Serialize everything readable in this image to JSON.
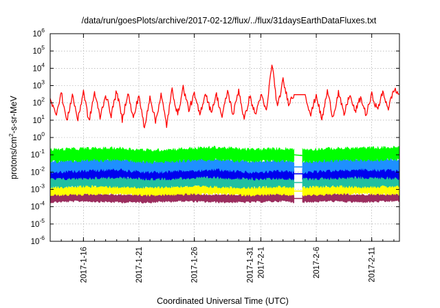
{
  "chart_data": {
    "type": "line",
    "title": "/data/run/goesPlots/archive/2017-02-12/flux/../flux/31daysEarthDataFluxes.txt",
    "xlabel": "Coordinated Universal Time (UTC)",
    "ylabel": "protons/cm2-s-sr-MeV",
    "ylabel_parts": {
      "base": "protons/cm",
      "sup": "2",
      "rest": "-s-sr-MeV"
    },
    "yscale": "log",
    "xlim": [
      "2017-01-13",
      "2017-02-13T12:00"
    ],
    "ylim": [
      1e-06,
      1000000.0
    ],
    "grid": true,
    "legend": "none",
    "x_ticks": [
      {
        "x": "2017-01-16",
        "label": "2017-1-16"
      },
      {
        "x": "2017-01-21",
        "label": "2017-1-21"
      },
      {
        "x": "2017-01-26",
        "label": "2017-1-26"
      },
      {
        "x": "2017-01-31",
        "label": "2017-1-31"
      },
      {
        "x": "2017-02-01",
        "label": "2017-2-1"
      },
      {
        "x": "2017-02-06",
        "label": "2017-2-6"
      },
      {
        "x": "2017-02-11",
        "label": "2017-2-11"
      }
    ],
    "y_ticks": [
      {
        "exp": "-6",
        "value": 1e-06
      },
      {
        "exp": "-5",
        "value": 1e-05
      },
      {
        "exp": "-4",
        "value": 0.0001
      },
      {
        "exp": "-3",
        "value": 0.001
      },
      {
        "exp": "-2",
        "value": 0.01
      },
      {
        "exp": "-1",
        "value": 0.1
      },
      {
        "exp": "0",
        "value": 1
      },
      {
        "exp": "1",
        "value": 10
      },
      {
        "exp": "2",
        "value": 100
      },
      {
        "exp": "3",
        "value": 1000
      },
      {
        "exp": "4",
        "value": 10000
      },
      {
        "exp": "5",
        "value": 100000
      },
      {
        "exp": "6",
        "value": 1000000
      }
    ],
    "y_tick_base": "10",
    "data_gap": [
      "2017-02-04",
      "2017-02-04T18:00"
    ],
    "series": [
      {
        "color": "#ff0000",
        "x": [
          "2017-01-13",
          "2017-01-13T12:00",
          "2017-01-14",
          "2017-01-14T12:00",
          "2017-01-15",
          "2017-01-15T12:00",
          "2017-01-16",
          "2017-01-16T12:00",
          "2017-01-17",
          "2017-01-17T12:00",
          "2017-01-18",
          "2017-01-18T12:00",
          "2017-01-19",
          "2017-01-19T12:00",
          "2017-01-20",
          "2017-01-20T12:00",
          "2017-01-21",
          "2017-01-21T12:00",
          "2017-01-22",
          "2017-01-22T12:00",
          "2017-01-23",
          "2017-01-23T12:00",
          "2017-01-24",
          "2017-01-24T12:00",
          "2017-01-25",
          "2017-01-25T12:00",
          "2017-01-26",
          "2017-01-26T12:00",
          "2017-01-27",
          "2017-01-27T12:00",
          "2017-01-28",
          "2017-01-28T12:00",
          "2017-01-29",
          "2017-01-29T12:00",
          "2017-01-30",
          "2017-01-30T12:00",
          "2017-01-31",
          "2017-01-31T12:00",
          "2017-02-01",
          "2017-02-01T12:00",
          "2017-02-02",
          "2017-02-02T12:00",
          "2017-02-03",
          "2017-02-03T12:00",
          "2017-02-04",
          "2017-02-05",
          "2017-02-05T12:00",
          "2017-02-06",
          "2017-02-06T12:00",
          "2017-02-07",
          "2017-02-07T12:00",
          "2017-02-08",
          "2017-02-08T12:00",
          "2017-02-09",
          "2017-02-09T12:00",
          "2017-02-10",
          "2017-02-10T12:00",
          "2017-02-11",
          "2017-02-11T12:00",
          "2017-02-12",
          "2017-02-12T12:00",
          "2017-02-13",
          "2017-02-13T12:00"
        ],
        "y": [
          200,
          20,
          400,
          8,
          300,
          10,
          500,
          8,
          400,
          15,
          300,
          20,
          500,
          10,
          400,
          12,
          300,
          3,
          250,
          8,
          300,
          5,
          600,
          20,
          800,
          40,
          300,
          20,
          400,
          30,
          300,
          15,
          500,
          20,
          600,
          10,
          250,
          20,
          300,
          30,
          20000,
          50,
          2000,
          100,
          300,
          300,
          20,
          300,
          10,
          500,
          15,
          400,
          20,
          300,
          30,
          200,
          20,
          300,
          40,
          400,
          50,
          600,
          300
        ]
      },
      {
        "color": "#00ff00",
        "x": [
          "2017-01-13",
          "2017-01-16",
          "2017-01-19",
          "2017-01-22",
          "2017-01-25",
          "2017-01-28",
          "2017-01-31",
          "2017-02-03",
          "2017-02-04",
          "2017-02-04T18:00",
          "2017-02-07",
          "2017-02-10",
          "2017-02-13T12:00"
        ],
        "y": [
          0.09,
          0.1,
          0.11,
          0.08,
          0.1,
          0.12,
          0.09,
          0.1,
          0.1,
          0.09,
          0.1,
          0.11,
          0.12
        ]
      },
      {
        "color": "#1e90ff",
        "x": [
          "2017-01-13",
          "2017-01-16",
          "2017-01-19",
          "2017-01-22",
          "2017-01-25",
          "2017-01-28",
          "2017-01-31",
          "2017-02-03",
          "2017-02-04",
          "2017-02-04T18:00",
          "2017-02-07",
          "2017-02-10",
          "2017-02-13T12:00"
        ],
        "y": [
          0.02,
          0.025,
          0.03,
          0.02,
          0.025,
          0.03,
          0.02,
          0.025,
          0.02,
          0.02,
          0.025,
          0.03,
          0.025
        ]
      },
      {
        "color": "#0000ee",
        "x": [
          "2017-01-13",
          "2017-01-16",
          "2017-01-19",
          "2017-01-22",
          "2017-01-25",
          "2017-01-28",
          "2017-01-31",
          "2017-02-03",
          "2017-02-04",
          "2017-02-04T18:00",
          "2017-02-07",
          "2017-02-10",
          "2017-02-13T12:00"
        ],
        "y": [
          0.008,
          0.009,
          0.01,
          0.008,
          0.009,
          0.01,
          0.008,
          0.009,
          0.008,
          0.008,
          0.009,
          0.01,
          0.009
        ]
      },
      {
        "color": "#20c0a0",
        "x": [
          "2017-01-13",
          "2017-01-16",
          "2017-01-19",
          "2017-01-22",
          "2017-01-25",
          "2017-01-28",
          "2017-01-31",
          "2017-02-03",
          "2017-02-04",
          "2017-02-04T18:00",
          "2017-02-07",
          "2017-02-10",
          "2017-02-13T12:00"
        ],
        "y": [
          0.0025,
          0.003,
          0.0028,
          0.0025,
          0.003,
          0.0028,
          0.0025,
          0.003,
          0.0025,
          0.0025,
          0.003,
          0.0028,
          0.003
        ]
      },
      {
        "color": "#ffff00",
        "x": [
          "2017-01-13",
          "2017-01-16",
          "2017-01-19",
          "2017-01-22",
          "2017-01-25",
          "2017-01-28",
          "2017-01-31",
          "2017-02-03",
          "2017-02-04",
          "2017-02-04T18:00",
          "2017-02-07",
          "2017-02-10",
          "2017-02-13T12:00"
        ],
        "y": [
          0.0008,
          0.0009,
          0.001,
          0.0008,
          0.0009,
          0.001,
          0.0008,
          0.0009,
          0.0008,
          0.0008,
          0.0009,
          0.001,
          0.0009
        ]
      },
      {
        "color": "#9b2d5e",
        "x": [
          "2017-01-13",
          "2017-01-16",
          "2017-01-19",
          "2017-01-22",
          "2017-01-25",
          "2017-01-28",
          "2017-01-31",
          "2017-02-03",
          "2017-02-04",
          "2017-02-04T18:00",
          "2017-02-07",
          "2017-02-10",
          "2017-02-13T12:00"
        ],
        "y": [
          0.0003,
          0.00035,
          0.0003,
          0.0003,
          0.00035,
          0.0003,
          0.0003,
          0.00035,
          0.0003,
          0.0003,
          0.00035,
          0.0003,
          0.00035
        ]
      }
    ]
  }
}
